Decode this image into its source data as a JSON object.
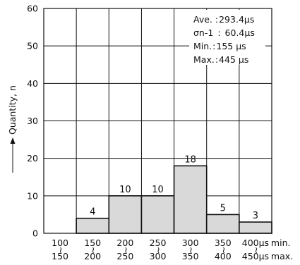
{
  "chart_data": {
    "type": "bar",
    "title": "",
    "xlabel": "",
    "ylabel": "Quantity, n",
    "ylim": [
      0,
      60
    ],
    "yticks": [
      0,
      10,
      20,
      30,
      40,
      50,
      60
    ],
    "grid": true,
    "categories": [
      {
        "top": "100",
        "bottom": "150"
      },
      {
        "top": "150",
        "bottom": "200"
      },
      {
        "top": "200",
        "bottom": "250"
      },
      {
        "top": "250",
        "bottom": "300"
      },
      {
        "top": "300",
        "bottom": "350"
      },
      {
        "top": "350",
        "bottom": "400"
      },
      {
        "top": "400µs",
        "bottom": "450µs"
      }
    ],
    "category_row_labels": {
      "top": "min.",
      "bottom": "max."
    },
    "values": [
      0,
      4,
      10,
      10,
      18,
      5,
      3
    ],
    "data_labels": [
      "",
      "4",
      "10",
      "10",
      "18",
      "5",
      "3"
    ],
    "bar_color": "#d9d9d9",
    "stats": [
      {
        "label": "Ave.",
        "sep": ":",
        "value": "293.4µs"
      },
      {
        "label": "σn-1",
        "sep": ":",
        "value": "60.4µs"
      },
      {
        "label": "Min.",
        "sep": ":",
        "value": "155 µs"
      },
      {
        "label": "Max.",
        "sep": ":",
        "value": "445 µs"
      }
    ]
  }
}
